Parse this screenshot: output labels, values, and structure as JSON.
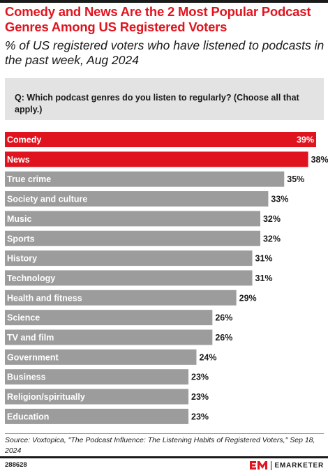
{
  "header": {
    "title": "Comedy and News Are the 2 Most Popular Podcast Genres Among US Registered Voters",
    "subtitle": "% of US registered voters who have listened to podcasts in the past week, Aug 2024"
  },
  "question": "Q: Which podcast genres do you listen to regularly? (Choose all that apply.)",
  "chart_data": {
    "type": "bar",
    "orientation": "horizontal",
    "title": "Comedy and News Are the 2 Most Popular Podcast Genres Among US Registered Voters",
    "subtitle": "% of US registered voters who have listened to podcasts in the past week, Aug 2024",
    "categories": [
      "Comedy",
      "News",
      "True crime",
      "Society and culture",
      "Music",
      "Sports",
      "History",
      "Technology",
      "Health and fitness",
      "Science",
      "TV and film",
      "Government",
      "Business",
      "Religion/spiritually",
      "Education"
    ],
    "values": [
      39,
      38,
      35,
      33,
      32,
      32,
      31,
      31,
      29,
      26,
      26,
      24,
      23,
      23,
      23
    ],
    "value_labels": [
      "39%",
      "38%",
      "35%",
      "33%",
      "32%",
      "32%",
      "31%",
      "31%",
      "29%",
      "26%",
      "26%",
      "24%",
      "23%",
      "23%",
      "23%"
    ],
    "highlighted": [
      "Comedy",
      "News"
    ],
    "xlim": [
      0,
      39
    ],
    "grid": false,
    "colors": {
      "highlight": "#e0141e",
      "default": "#9c9c9c"
    }
  },
  "footer": {
    "source": "Source: Voxtopica, \"The Podcast Influence: The Listening Habits of Registered Voters,\" Sep 18, 2024",
    "chart_id": "288628",
    "brand": "EMARKETER"
  }
}
